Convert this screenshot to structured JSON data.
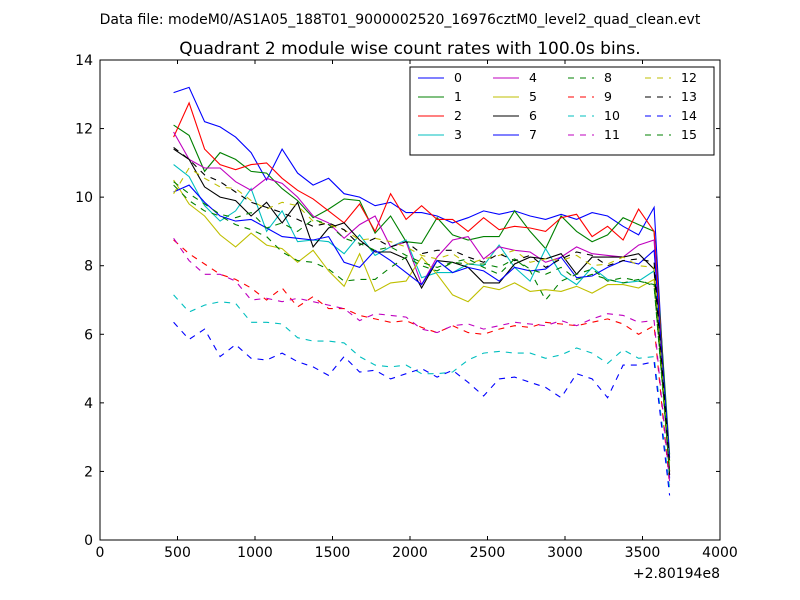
{
  "suptitle": "Data file: modeM0/AS1A05_188T01_9000002520_16976cztM0_level2_quad_clean.evt",
  "chart_data": {
    "type": "line",
    "title": "Quadrant 2 module wise count rates with 100.0s bins.",
    "xlabel": "",
    "ylabel": "",
    "xlim": [
      0,
      4000
    ],
    "ylim": [
      0,
      14
    ],
    "x_offset_label": "+2.80194e8",
    "xticks": [
      "0",
      "500",
      "1000",
      "1500",
      "2000",
      "2500",
      "3000",
      "3500",
      "4000"
    ],
    "yticks": [
      "0",
      "2",
      "4",
      "6",
      "8",
      "10",
      "12",
      "14"
    ],
    "grid": false,
    "legend_location": "upper right",
    "legend_columns": 4,
    "x": [
      475,
      575,
      675,
      775,
      875,
      975,
      1075,
      1175,
      1275,
      1375,
      1475,
      1575,
      1675,
      1775,
      1875,
      1975,
      2075,
      2175,
      2275,
      2375,
      2475,
      2575,
      2675,
      2775,
      2875,
      2975,
      3075,
      3175,
      3275,
      3375,
      3475,
      3575,
      3675
    ],
    "series": [
      {
        "name": "0",
        "color": "#0000ff",
        "dash": "solid",
        "values": [
          13.05,
          13.2,
          12.2,
          12.05,
          11.75,
          11.3,
          10.5,
          11.4,
          10.7,
          10.35,
          10.55,
          10.1,
          10.0,
          9.75,
          9.85,
          9.55,
          9.55,
          9.45,
          9.25,
          9.4,
          9.6,
          9.5,
          9.6,
          9.45,
          9.35,
          9.5,
          9.35,
          9.55,
          9.45,
          9.15,
          8.9,
          9.7,
          1.8
        ]
      },
      {
        "name": "1",
        "color": "#008000",
        "dash": "solid",
        "values": [
          12.1,
          11.8,
          10.75,
          11.3,
          11.1,
          10.75,
          10.7,
          10.25,
          9.9,
          9.4,
          9.65,
          9.95,
          9.9,
          8.95,
          9.45,
          8.7,
          8.65,
          9.4,
          8.9,
          8.75,
          8.85,
          8.85,
          9.6,
          9.0,
          8.5,
          9.45,
          9.0,
          8.7,
          8.9,
          9.4,
          9.2,
          9.0,
          2.5
        ]
      },
      {
        "name": "2",
        "color": "#ff0000",
        "dash": "solid",
        "values": [
          11.75,
          12.75,
          11.4,
          10.95,
          10.8,
          10.95,
          11.0,
          10.55,
          10.2,
          9.95,
          9.6,
          9.25,
          9.8,
          9.0,
          10.1,
          9.35,
          9.75,
          9.35,
          9.35,
          9.0,
          9.4,
          9.05,
          9.15,
          9.1,
          9.0,
          9.4,
          9.5,
          8.85,
          9.15,
          8.75,
          9.65,
          9.0,
          2.0
        ]
      },
      {
        "name": "3",
        "color": "#00bfbf",
        "dash": "solid",
        "values": [
          10.95,
          10.6,
          9.75,
          9.3,
          9.6,
          10.25,
          9.0,
          9.6,
          8.7,
          8.75,
          8.7,
          8.35,
          8.9,
          8.3,
          8.55,
          8.75,
          7.65,
          7.8,
          7.8,
          8.05,
          8.0,
          8.6,
          7.95,
          7.55,
          8.5,
          7.75,
          7.45,
          7.95,
          7.6,
          7.5,
          7.55,
          7.85,
          2.3
        ]
      },
      {
        "name": "4",
        "color": "#bf00bf",
        "dash": "solid",
        "values": [
          11.9,
          11.1,
          10.85,
          10.85,
          10.45,
          10.2,
          10.55,
          10.4,
          10.0,
          9.45,
          9.25,
          8.8,
          9.2,
          9.45,
          8.55,
          8.7,
          7.45,
          8.25,
          8.75,
          8.85,
          8.2,
          8.55,
          8.45,
          8.4,
          8.1,
          8.25,
          8.55,
          8.35,
          8.3,
          8.25,
          8.6,
          8.75,
          1.9
        ]
      },
      {
        "name": "5",
        "color": "#bfbf00",
        "dash": "solid",
        "values": [
          10.5,
          9.8,
          9.45,
          8.9,
          8.55,
          8.95,
          8.6,
          8.5,
          8.1,
          8.45,
          7.85,
          7.4,
          8.35,
          7.25,
          7.5,
          7.55,
          8.25,
          7.75,
          7.15,
          6.95,
          7.4,
          7.3,
          7.5,
          7.25,
          7.3,
          7.25,
          7.4,
          7.2,
          7.45,
          7.45,
          7.35,
          7.6,
          2.3
        ]
      },
      {
        "name": "6",
        "color": "#000000",
        "dash": "solid",
        "values": [
          11.4,
          11.1,
          10.3,
          10.0,
          9.9,
          9.45,
          9.85,
          9.25,
          9.85,
          8.55,
          9.1,
          9.25,
          8.75,
          8.4,
          8.4,
          8.2,
          7.35,
          8.15,
          8.1,
          7.95,
          7.5,
          7.5,
          8.05,
          8.25,
          8.2,
          8.35,
          7.75,
          8.25,
          8.25,
          8.25,
          8.35,
          7.9,
          1.9
        ]
      },
      {
        "name": "7",
        "color": "#0000ff",
        "dash": "solid",
        "values": [
          10.15,
          10.35,
          9.85,
          9.45,
          9.3,
          9.35,
          9.1,
          8.85,
          8.8,
          8.75,
          8.85,
          8.1,
          7.95,
          8.45,
          8.15,
          7.8,
          7.45,
          8.15,
          7.8,
          7.95,
          7.85,
          7.55,
          7.95,
          7.85,
          7.9,
          8.25,
          7.65,
          7.7,
          7.95,
          8.15,
          8.05,
          8.45,
          2.4
        ]
      },
      {
        "name": "8",
        "color": "#008000",
        "dash": "dashed",
        "values": [
          10.35,
          9.9,
          9.6,
          9.45,
          9.2,
          9.05,
          8.85,
          8.4,
          8.15,
          8.1,
          7.9,
          7.55,
          7.6,
          7.6,
          7.95,
          8.25,
          8.0,
          7.85,
          8.1,
          8.05,
          8.05,
          7.95,
          8.2,
          7.9,
          7.75,
          7.95,
          7.6,
          7.75,
          7.6,
          7.5,
          7.6,
          7.4,
          2.0
        ]
      },
      {
        "name": "9",
        "color": "#ff0000",
        "dash": "dashed",
        "values": [
          8.75,
          8.35,
          8.05,
          7.75,
          7.6,
          7.35,
          7.0,
          7.35,
          6.8,
          7.1,
          6.75,
          6.75,
          6.55,
          6.45,
          6.35,
          6.4,
          6.2,
          6.05,
          6.25,
          6.05,
          6.0,
          6.15,
          6.25,
          6.2,
          6.35,
          6.3,
          6.25,
          6.35,
          6.45,
          6.3,
          6.0,
          6.25,
          1.6
        ]
      },
      {
        "name": "10",
        "color": "#00bfbf",
        "dash": "dashed",
        "values": [
          7.15,
          6.65,
          6.85,
          6.95,
          6.9,
          6.35,
          6.35,
          6.3,
          5.9,
          5.8,
          5.8,
          5.75,
          5.35,
          5.1,
          5.05,
          5.1,
          4.85,
          4.85,
          4.9,
          5.25,
          5.45,
          5.5,
          5.45,
          5.45,
          5.3,
          5.4,
          5.6,
          5.45,
          5.15,
          5.55,
          5.3,
          5.35,
          1.5
        ]
      },
      {
        "name": "11",
        "color": "#bf00bf",
        "dash": "dashed",
        "values": [
          8.8,
          8.15,
          7.75,
          7.75,
          7.55,
          7.0,
          7.05,
          6.95,
          7.05,
          6.95,
          6.85,
          6.75,
          6.4,
          6.6,
          6.55,
          6.5,
          6.15,
          6.05,
          6.25,
          6.3,
          6.15,
          6.25,
          6.35,
          6.3,
          6.25,
          6.4,
          6.25,
          6.45,
          6.6,
          6.55,
          6.35,
          6.4,
          1.7
        ]
      },
      {
        "name": "12",
        "color": "#bfbf00",
        "dash": "dashed",
        "values": [
          10.1,
          10.85,
          10.55,
          10.3,
          10.25,
          9.9,
          9.65,
          9.85,
          9.75,
          9.3,
          9.2,
          9.05,
          8.75,
          8.8,
          8.7,
          8.55,
          8.3,
          8.2,
          8.35,
          8.05,
          8.2,
          8.3,
          8.45,
          8.1,
          8.2,
          8.15,
          8.3,
          8.0,
          8.05,
          8.25,
          8.0,
          7.95,
          2.1
        ]
      },
      {
        "name": "13",
        "color": "#000000",
        "dash": "dashed",
        "values": [
          11.45,
          11.1,
          10.65,
          10.45,
          10.15,
          9.85,
          9.7,
          9.55,
          9.35,
          9.15,
          9.25,
          9.05,
          8.6,
          8.8,
          8.55,
          8.7,
          8.35,
          8.45,
          8.45,
          8.25,
          8.1,
          8.35,
          8.15,
          8.3,
          7.95,
          8.2,
          8.4,
          8.3,
          8.0,
          8.15,
          8.2,
          8.1,
          2.2
        ]
      },
      {
        "name": "14",
        "color": "#0000ff",
        "dash": "dashed",
        "values": [
          6.35,
          5.85,
          6.15,
          5.35,
          5.7,
          5.3,
          5.25,
          5.45,
          5.2,
          5.05,
          4.8,
          5.35,
          4.9,
          4.95,
          4.7,
          4.85,
          5.0,
          4.75,
          4.95,
          4.6,
          4.2,
          4.7,
          4.75,
          4.6,
          4.45,
          4.15,
          4.85,
          4.7,
          4.15,
          5.1,
          5.1,
          5.2,
          1.3
        ]
      },
      {
        "name": "15",
        "color": "#008000",
        "dash": "dashed",
        "values": [
          10.45,
          10.1,
          9.8,
          9.5,
          9.4,
          9.55,
          9.1,
          9.25,
          9.0,
          9.35,
          9.2,
          8.8,
          8.65,
          8.45,
          8.55,
          8.3,
          8.1,
          7.95,
          8.1,
          8.2,
          7.95,
          7.75,
          8.2,
          7.85,
          7.0,
          7.55,
          7.75,
          7.9,
          7.55,
          7.65,
          7.55,
          7.45,
          2.0
        ]
      }
    ]
  }
}
